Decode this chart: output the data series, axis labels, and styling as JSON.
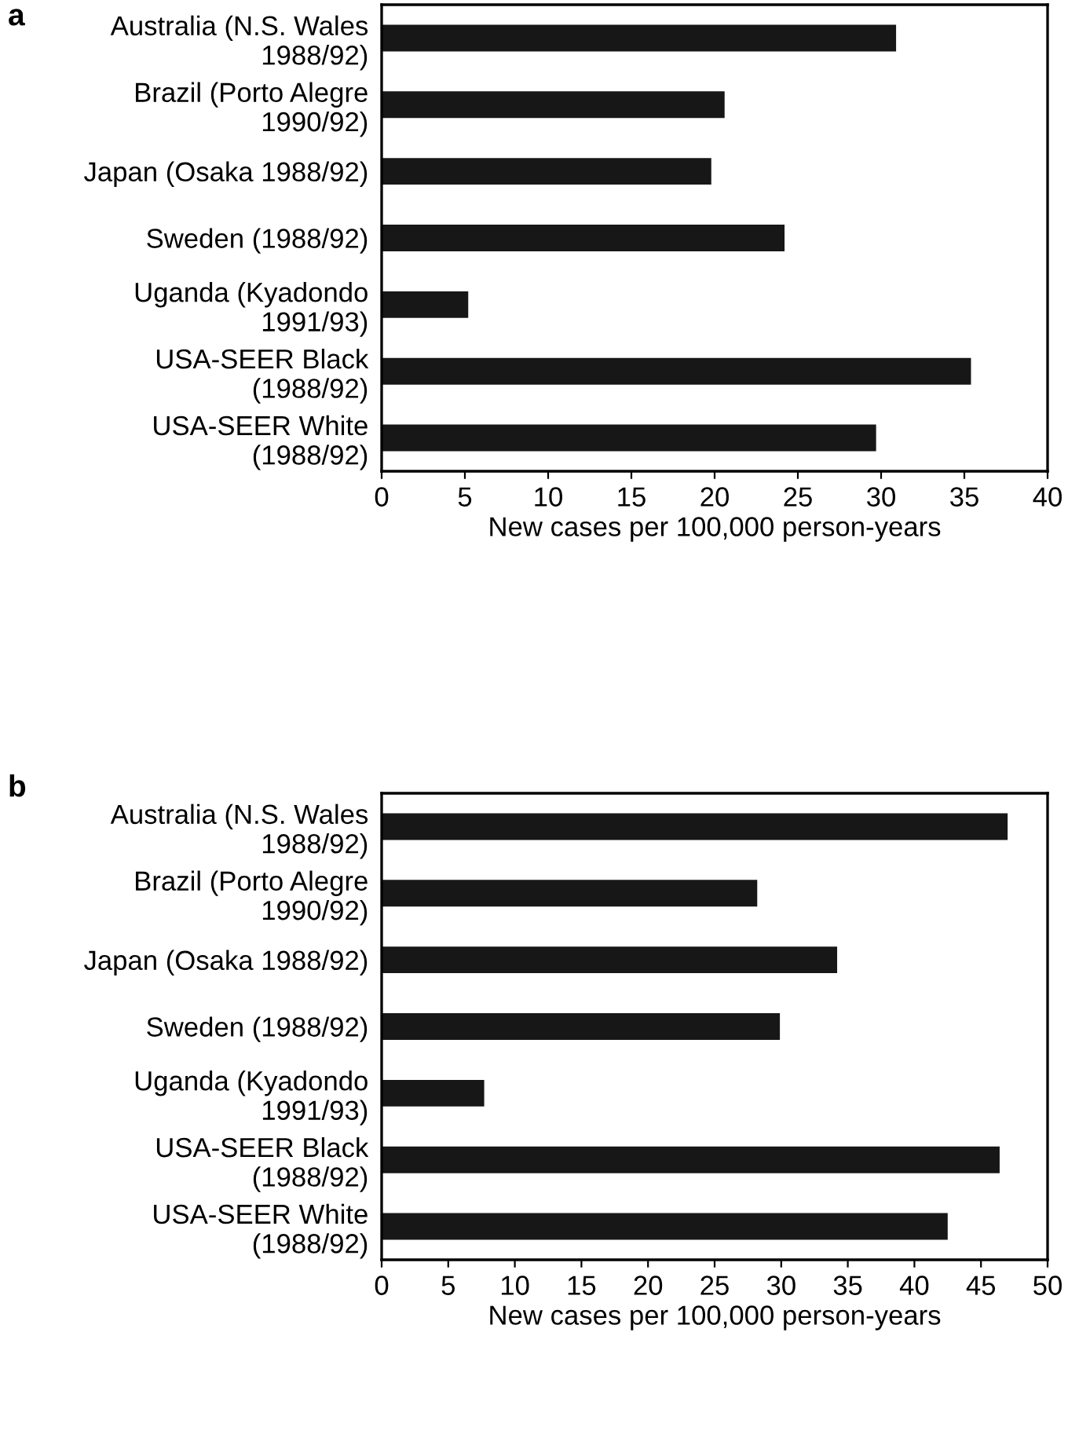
{
  "chart_data": [
    {
      "type": "bar",
      "orientation": "horizontal",
      "title": "a",
      "xlabel": "New cases per 100,000 person-years",
      "categories": [
        "Australia (N.S. Wales\n1988/92)",
        "Brazil (Porto Alegre\n1990/92)",
        "Japan (Osaka 1988/92)",
        "Sweden (1988/92)",
        "Uganda (Kyadondo\n1991/93)",
        "USA-SEER Black\n(1988/92)",
        "USA-SEER White\n(1988/92)"
      ],
      "values": [
        30.9,
        20.6,
        19.8,
        24.2,
        5.2,
        35.4,
        29.7
      ],
      "color": "#171717",
      "xlim": [
        0,
        40
      ],
      "xticks": [
        0,
        5,
        10,
        15,
        20,
        25,
        30,
        35,
        40
      ],
      "grid": false,
      "legend": false
    },
    {
      "type": "bar",
      "orientation": "horizontal",
      "title": "b",
      "xlabel": "New cases per 100,000 person-years",
      "categories": [
        "Australia (N.S. Wales\n1988/92)",
        "Brazil (Porto Alegre\n1990/92)",
        "Japan (Osaka 1988/92)",
        "Sweden (1988/92)",
        "Uganda (Kyadondo\n1991/93)",
        "USA-SEER Black\n(1988/92)",
        "USA-SEER White\n(1988/92)"
      ],
      "values": [
        47.0,
        28.2,
        34.2,
        29.9,
        7.7,
        46.4,
        42.5
      ],
      "color": "#171717",
      "xlim": [
        0,
        50
      ],
      "xticks": [
        0,
        5,
        10,
        15,
        20,
        25,
        30,
        35,
        40,
        45,
        50
      ],
      "grid": false,
      "legend": false
    }
  ]
}
